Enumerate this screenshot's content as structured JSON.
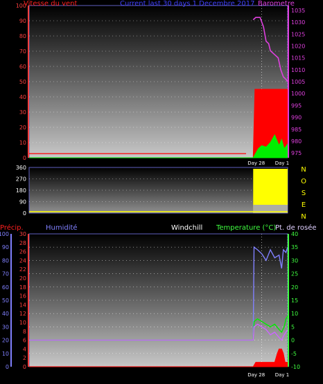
{
  "chart_data": [
    {
      "type": "line",
      "title": "Current last 30 days 1 Decembre 2017",
      "left_axis": {
        "label": "Vitesse du vent",
        "ticks": [
          0,
          10,
          20,
          30,
          40,
          50,
          60,
          70,
          80,
          90,
          100
        ],
        "range": [
          0,
          100
        ],
        "color": "#ff2020"
      },
      "right_axis": {
        "label": "Barometre",
        "ticks": [
          975,
          980,
          985,
          990,
          995,
          1000,
          1005,
          1010,
          1015,
          1020,
          1025,
          1030,
          1035
        ],
        "range": [
          973,
          1037
        ],
        "color": "#e040e0"
      },
      "x_range": [
        0,
        30
      ],
      "x_ticks": [
        {
          "label": "Day 28",
          "x": 27
        },
        {
          "label": "Day 1",
          "x": 30
        }
      ],
      "grid": true,
      "series": [
        {
          "color": "#ff0000",
          "axis": "left",
          "style": "fill",
          "x": [
            0,
            26.0,
            26.2,
            26.5,
            27.0,
            27.5,
            28.0,
            28.5,
            29.0,
            29.5,
            29.8,
            30
          ],
          "y": [
            0,
            0,
            45,
            45,
            45,
            45,
            45,
            45,
            45,
            45,
            45,
            45
          ]
        },
        {
          "color": "#00ee00",
          "axis": "left",
          "style": "fill",
          "x": [
            0,
            26.0,
            26.3,
            26.6,
            27.0,
            27.5,
            28.0,
            28.5,
            29.0,
            29.3,
            29.6,
            30
          ],
          "y": [
            0,
            0,
            3,
            6,
            8,
            7,
            10,
            15,
            8,
            12,
            6,
            9
          ]
        },
        {
          "color": "#e040e0",
          "axis": "right",
          "style": "line",
          "x": [
            26.0,
            26.3,
            26.8,
            27.2,
            27.5,
            27.8,
            28.0,
            28.3,
            28.6,
            28.9,
            29.2,
            29.5,
            29.8,
            30.0
          ],
          "y": [
            1031,
            1032,
            1032,
            1028,
            1022,
            1021,
            1018,
            1017,
            1016,
            1015,
            1010,
            1007,
            1006,
            1005
          ]
        }
      ]
    },
    {
      "type": "bar",
      "left_axis": {
        "ticks": [
          0,
          90,
          180,
          270,
          360
        ],
        "range": [
          0,
          360
        ],
        "color": "#ffffff"
      },
      "right_labels": [
        "N",
        "O",
        "S",
        "E",
        "N"
      ],
      "x_range": [
        0,
        30
      ],
      "grid": true,
      "series": [
        {
          "color": "#ffff00",
          "style": "fill",
          "x": [
            26.0,
            30.0
          ],
          "y": [
            360,
            360
          ]
        },
        {
          "color": "#9999cc",
          "style": "band",
          "x": [
            26.0,
            30.0
          ],
          "y": [
            10,
            10
          ]
        }
      ]
    },
    {
      "type": "line",
      "headers": {
        "precip": "Précip.",
        "humidity": "Humidité",
        "windchill": "Windchill",
        "temperature": "Temperature (°C)",
        "dewpoint": "Pt. de rosée"
      },
      "humidity_axis": {
        "ticks": [
          0,
          10,
          20,
          30,
          40,
          50,
          60,
          70,
          80,
          90,
          100
        ],
        "range": [
          0,
          100
        ],
        "color": "#8080ff"
      },
      "precip_axis": {
        "ticks": [
          0,
          2,
          4,
          6,
          8,
          10,
          12,
          14,
          16,
          18,
          20,
          22,
          24,
          26,
          28,
          30
        ],
        "range": [
          0,
          30
        ],
        "color": "#ff4040"
      },
      "temp_axis": {
        "ticks": [
          -10,
          -5,
          0,
          5,
          10,
          15,
          20,
          25,
          30,
          35,
          40
        ],
        "range": [
          -10,
          40
        ],
        "color": "#40ff40"
      },
      "x_range": [
        0,
        30
      ],
      "x_ticks": [
        {
          "label": "Day 28",
          "x": 27
        },
        {
          "label": "Day 1",
          "x": 30
        }
      ],
      "grid": true,
      "series": [
        {
          "name": "Humidité",
          "color": "#8080ff",
          "axis": "humidity",
          "style": "line",
          "x": [
            0,
            26.0,
            26.1,
            26.5,
            27.0,
            27.5,
            28.0,
            28.5,
            29.0,
            29.3,
            29.5,
            29.8,
            30.0
          ],
          "y": [
            20,
            20,
            90,
            88,
            85,
            80,
            88,
            82,
            84,
            74,
            88,
            86,
            90
          ]
        },
        {
          "name": "Temperature (°C)",
          "color": "#00ee00",
          "axis": "temp",
          "style": "line",
          "x": [
            0,
            26.0,
            26.1,
            26.5,
            27.0,
            27.5,
            28.0,
            28.5,
            29.0,
            29.3,
            29.6,
            29.8,
            30.0
          ],
          "y": [
            0,
            0,
            7,
            8,
            7,
            6,
            5,
            6,
            4,
            3,
            5,
            8,
            9
          ]
        },
        {
          "name": "Pt. de rosée",
          "color": "#cc66ff",
          "axis": "temp",
          "style": "line",
          "x": [
            0,
            26.0,
            26.1,
            26.5,
            27.0,
            27.5,
            28.0,
            28.5,
            29.0,
            29.3,
            29.6,
            29.8,
            30.0
          ],
          "y": [
            0,
            0,
            5,
            6,
            5,
            4,
            2,
            3,
            1,
            0,
            2,
            3,
            4
          ]
        },
        {
          "name": "Précip.",
          "color": "#ff0000",
          "axis": "precip",
          "style": "fill",
          "x": [
            0,
            26.0,
            26.3,
            27.0,
            28.5,
            28.8,
            29.0,
            29.3,
            29.5,
            29.7,
            30.0
          ],
          "y": [
            0,
            0,
            1,
            1,
            1,
            3,
            4,
            4,
            3,
            1,
            1
          ]
        }
      ]
    }
  ]
}
